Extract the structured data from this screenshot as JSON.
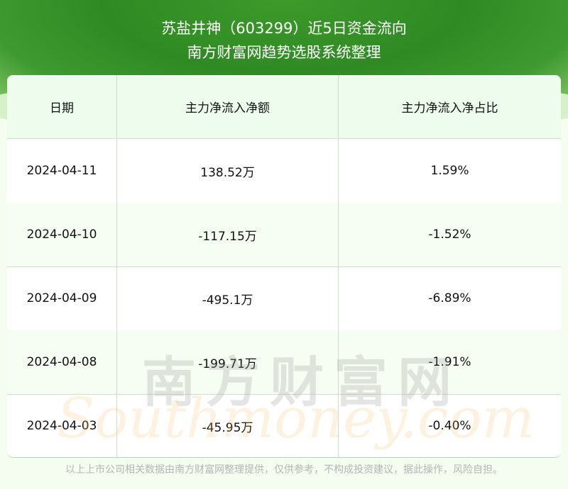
{
  "header": {
    "title": "苏盐井神（603299）近5日资金流向",
    "subtitle": "南方财富网趋势选股系统整理"
  },
  "table": {
    "columns": [
      "日期",
      "主力净流入净额",
      "主力净流入净占比"
    ],
    "rows": [
      [
        "2024-04-11",
        "138.52万",
        "1.59%"
      ],
      [
        "2024-04-10",
        "-117.15万",
        "-1.52%"
      ],
      [
        "2024-04-09",
        "-495.1万",
        "-6.89%"
      ],
      [
        "2024-04-08",
        "-199.71万",
        "-1.91%"
      ],
      [
        "2024-04-03",
        "-45.95万",
        "-0.40%"
      ]
    ]
  },
  "watermark": {
    "cn": "南方财富网",
    "en": "Southmoney.com"
  },
  "footer": "以上上市公司相关数据由南方财富网整理提供，仅供参考，不构成投资建议，据此操作，风险自担。",
  "colors": {
    "banner": "#2f8a24",
    "header_bg": "#eefcee",
    "page_bg": "#f5fdf1"
  }
}
